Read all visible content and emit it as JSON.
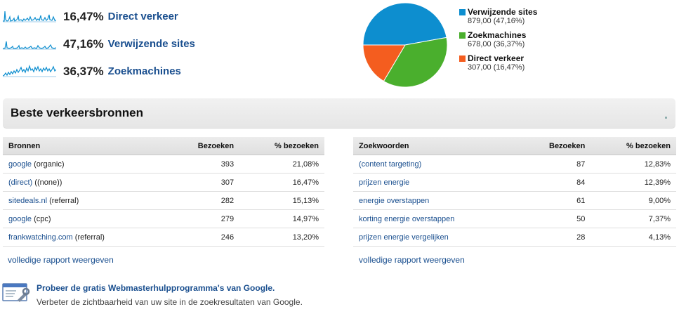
{
  "summary": [
    {
      "percent": "16,47%",
      "label": "Direct verkeer"
    },
    {
      "percent": "47,16%",
      "label": "Verwijzende sites"
    },
    {
      "percent": "36,37%",
      "label": "Zoekmachines"
    }
  ],
  "colors": {
    "blue": "#0d8ecf",
    "green": "#4aaf2d",
    "orange": "#f45d1f",
    "link": "#1a4f8f"
  },
  "chart_data": {
    "type": "pie",
    "slices": [
      {
        "name": "Verwijzende sites",
        "value": 879.0,
        "percent": 47.16,
        "color": "#0d8ecf"
      },
      {
        "name": "Zoekmachines",
        "value": 678.0,
        "percent": 36.37,
        "color": "#4aaf2d"
      },
      {
        "name": "Direct verkeer",
        "value": 307.0,
        "percent": 16.47,
        "color": "#f45d1f"
      }
    ],
    "legend": "right"
  },
  "legend": [
    {
      "name": "Verwijzende sites",
      "value": "879,00 (47,16%)"
    },
    {
      "name": "Zoekmachines",
      "value": "678,00 (36,37%)"
    },
    {
      "name": "Direct verkeer",
      "value": "307,00 (16,47%)"
    }
  ],
  "section": {
    "title": "Beste verkeersbronnen"
  },
  "sources": {
    "headers": [
      "Bronnen",
      "Bezoeken",
      "% bezoeken"
    ],
    "rows": [
      {
        "link": "google",
        "suffix": " (organic)",
        "visits": "393",
        "pct": "21,08%"
      },
      {
        "link": "(direct)",
        "suffix": " ((none))",
        "visits": "307",
        "pct": "16,47%"
      },
      {
        "link": "sitedeals.nl",
        "suffix": " (referral)",
        "visits": "282",
        "pct": "15,13%"
      },
      {
        "link": "google",
        "suffix": " (cpc)",
        "visits": "279",
        "pct": "14,97%"
      },
      {
        "link": "frankwatching.com",
        "suffix": " (referral)",
        "visits": "246",
        "pct": "13,20%"
      }
    ],
    "full_report": "volledige rapport weergeven"
  },
  "keywords": {
    "headers": [
      "Zoekwoorden",
      "Bezoeken",
      "% bezoeken"
    ],
    "rows": [
      {
        "link": "(content targeting)",
        "visits": "87",
        "pct": "12,83%"
      },
      {
        "link": "prijzen energie",
        "visits": "84",
        "pct": "12,39%"
      },
      {
        "link": "energie overstappen",
        "visits": "61",
        "pct": "9,00%"
      },
      {
        "link": "korting energie overstappen",
        "visits": "50",
        "pct": "7,37%"
      },
      {
        "link": "prijzen energie vergelijken",
        "visits": "28",
        "pct": "4,13%"
      }
    ],
    "full_report": "volledige rapport weergeven"
  },
  "promo": {
    "title": "Probeer de gratis Webmasterhulpprogramma's van Google.",
    "subtitle": "Verbeter de zichtbaarheid van uw site in de zoekresultaten van Google.",
    "icon": "webmaster-tools-icon"
  }
}
